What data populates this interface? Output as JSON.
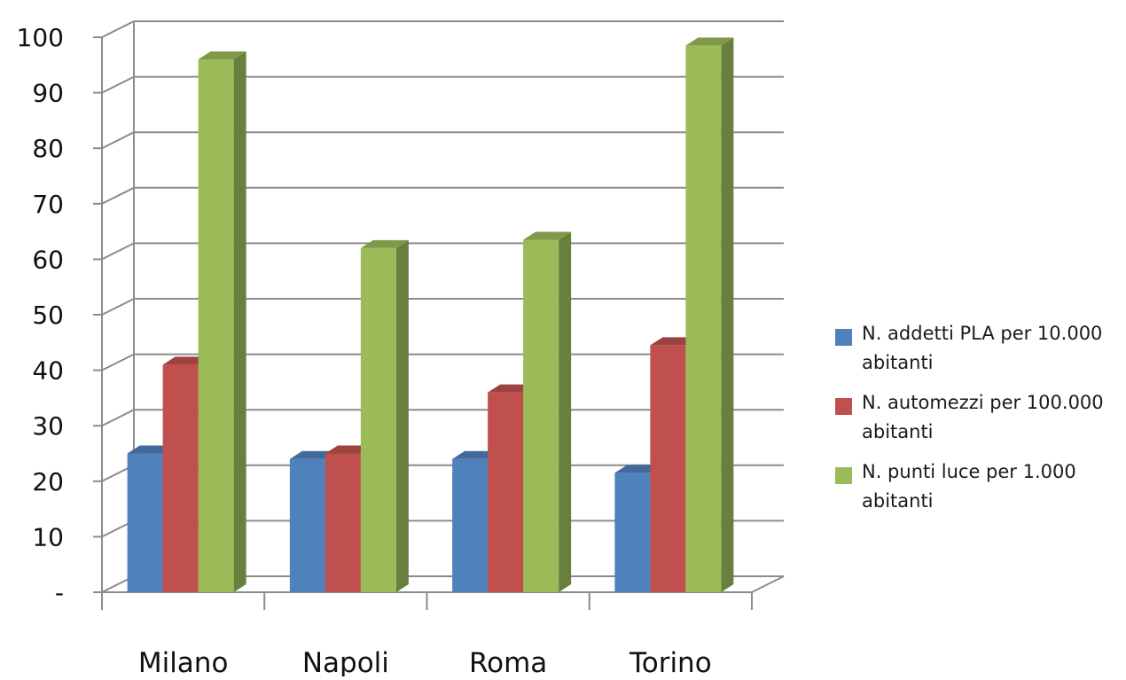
{
  "chart_data": {
    "type": "bar",
    "title": "",
    "xlabel": "",
    "ylabel": "",
    "categories": [
      "Milano",
      "Napoli",
      "Roma",
      "Torino"
    ],
    "series": [
      {
        "name": "N. addetti PLA per 10.000 abitanti",
        "color": "#4f81bd",
        "values": [
          25,
          24,
          24,
          21.5
        ]
      },
      {
        "name": "N. automezzi per 100.000 abitanti",
        "color": "#c0504d",
        "values": [
          41,
          25,
          36,
          44.5
        ]
      },
      {
        "name": "N. punti luce per 1.000 abitanti",
        "color": "#9bbb59",
        "values": [
          96,
          62,
          63.5,
          98.5
        ]
      }
    ],
    "ylim": [
      0,
      100
    ],
    "yticks": [
      0,
      10,
      20,
      30,
      40,
      50,
      60,
      70,
      80,
      90,
      100
    ],
    "ytick_labels": [
      "-",
      "10",
      "20",
      "30",
      "40",
      "50",
      "60",
      "70",
      "80",
      "90",
      "100"
    ],
    "grid": true,
    "legend_position": "right"
  }
}
